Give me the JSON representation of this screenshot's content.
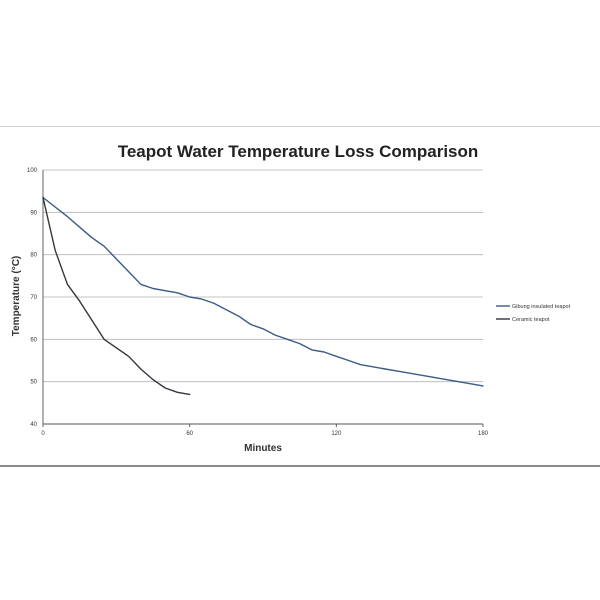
{
  "chart_data": {
    "type": "line",
    "title": "Teapot Water Temperature Loss Comparison",
    "xlabel": "Minutes",
    "ylabel": "Temperature (°C)",
    "xlim": [
      0,
      180
    ],
    "ylim": [
      40,
      100
    ],
    "x_ticks": [
      0,
      60,
      120,
      180
    ],
    "y_ticks": [
      40,
      50,
      60,
      70,
      80,
      90,
      100
    ],
    "grid": "horizontal",
    "legend_position": "right",
    "series": [
      {
        "name": "Gibung insulated teapot",
        "color": "#3b5b86",
        "x": [
          0,
          10,
          15,
          20,
          25,
          30,
          35,
          40,
          45,
          50,
          55,
          60,
          65,
          70,
          75,
          80,
          85,
          90,
          95,
          100,
          105,
          110,
          115,
          120,
          125,
          130,
          135,
          140,
          145,
          150,
          155,
          160,
          165,
          170,
          175,
          180
        ],
        "y": [
          93.5,
          89,
          86.5,
          84,
          82,
          79,
          76,
          73,
          72,
          71.5,
          71,
          70,
          69.5,
          68.5,
          67,
          65.5,
          63.5,
          62.5,
          61,
          60,
          59,
          57.5,
          57,
          56,
          55,
          54,
          53.5,
          53,
          52.5,
          52,
          51.5,
          51,
          50.5,
          50,
          49.5,
          49
        ]
      },
      {
        "name": "Ceramic teapot",
        "color": "#34363f",
        "x": [
          0,
          5,
          10,
          15,
          20,
          25,
          30,
          35,
          40,
          45,
          50,
          55,
          60
        ],
        "y": [
          93.5,
          81,
          73,
          69,
          64.5,
          60,
          58,
          56,
          53,
          50.5,
          48.5,
          47.5,
          47
        ]
      }
    ]
  }
}
